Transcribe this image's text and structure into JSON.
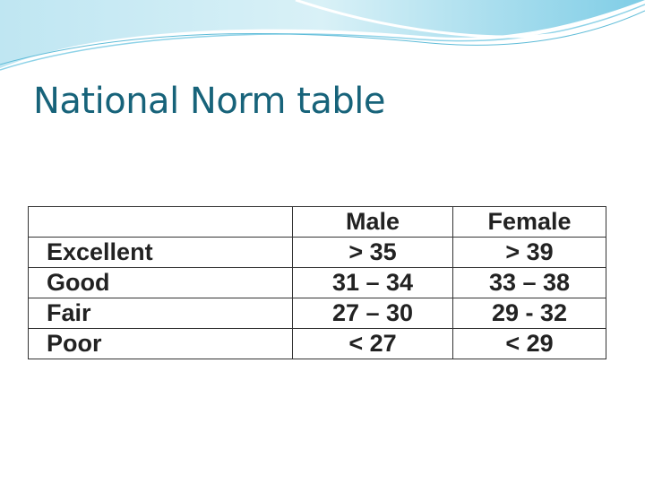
{
  "title": "National Norm table",
  "table": {
    "columns": [
      "Male",
      "Female"
    ],
    "rows": [
      {
        "label": "Excellent",
        "values": [
          "> 35",
          "> 39"
        ]
      },
      {
        "label": "Good",
        "values": [
          "31 – 34",
          "33 – 38"
        ]
      },
      {
        "label": "Fair",
        "values": [
          "27 – 30",
          "29 - 32"
        ]
      },
      {
        "label": "Poor",
        "values": [
          "< 27",
          "< 29"
        ]
      }
    ]
  }
}
